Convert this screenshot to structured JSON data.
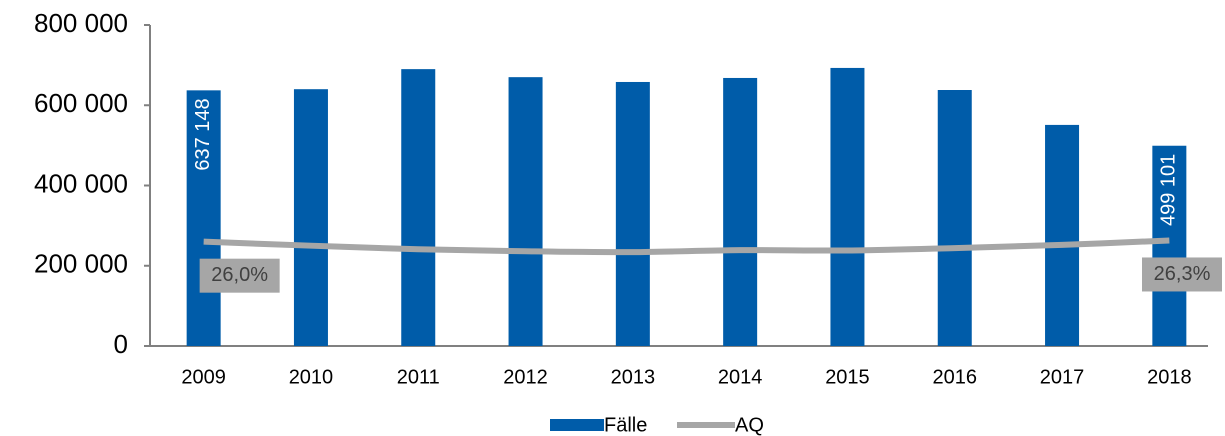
{
  "chart_data": {
    "type": "bar",
    "categories": [
      "2009",
      "2010",
      "2011",
      "2012",
      "2013",
      "2014",
      "2015",
      "2016",
      "2017",
      "2018"
    ],
    "series": [
      {
        "name": "Fälle",
        "type": "bar",
        "color": "#005ca9",
        "values": [
          637148,
          640000,
          690000,
          670000,
          658000,
          668000,
          693000,
          638000,
          551000,
          499101
        ],
        "value_labels": [
          "637 148",
          null,
          null,
          null,
          null,
          null,
          null,
          null,
          null,
          "499 101"
        ]
      },
      {
        "name": "AQ",
        "type": "line",
        "axis": "y2",
        "color": "#a6a6a6",
        "values": [
          26.0,
          25.0,
          24.1,
          23.6,
          23.4,
          23.9,
          23.8,
          24.4,
          25.2,
          26.3
        ],
        "value_labels": [
          "26,0%",
          null,
          null,
          null,
          null,
          null,
          null,
          null,
          null,
          "26,3%"
        ]
      }
    ],
    "ylim": [
      0,
      800000
    ],
    "yticks": [
      0,
      {
        "value": 200000,
        "label": "200 000"
      },
      {
        "value": 400000,
        "label": "400 000"
      },
      {
        "value": 600000,
        "label": "600 000"
      },
      {
        "value": 800000,
        "label": "800 000"
      }
    ],
    "y2lim": [
      0,
      80
    ],
    "legend": "bottom"
  }
}
